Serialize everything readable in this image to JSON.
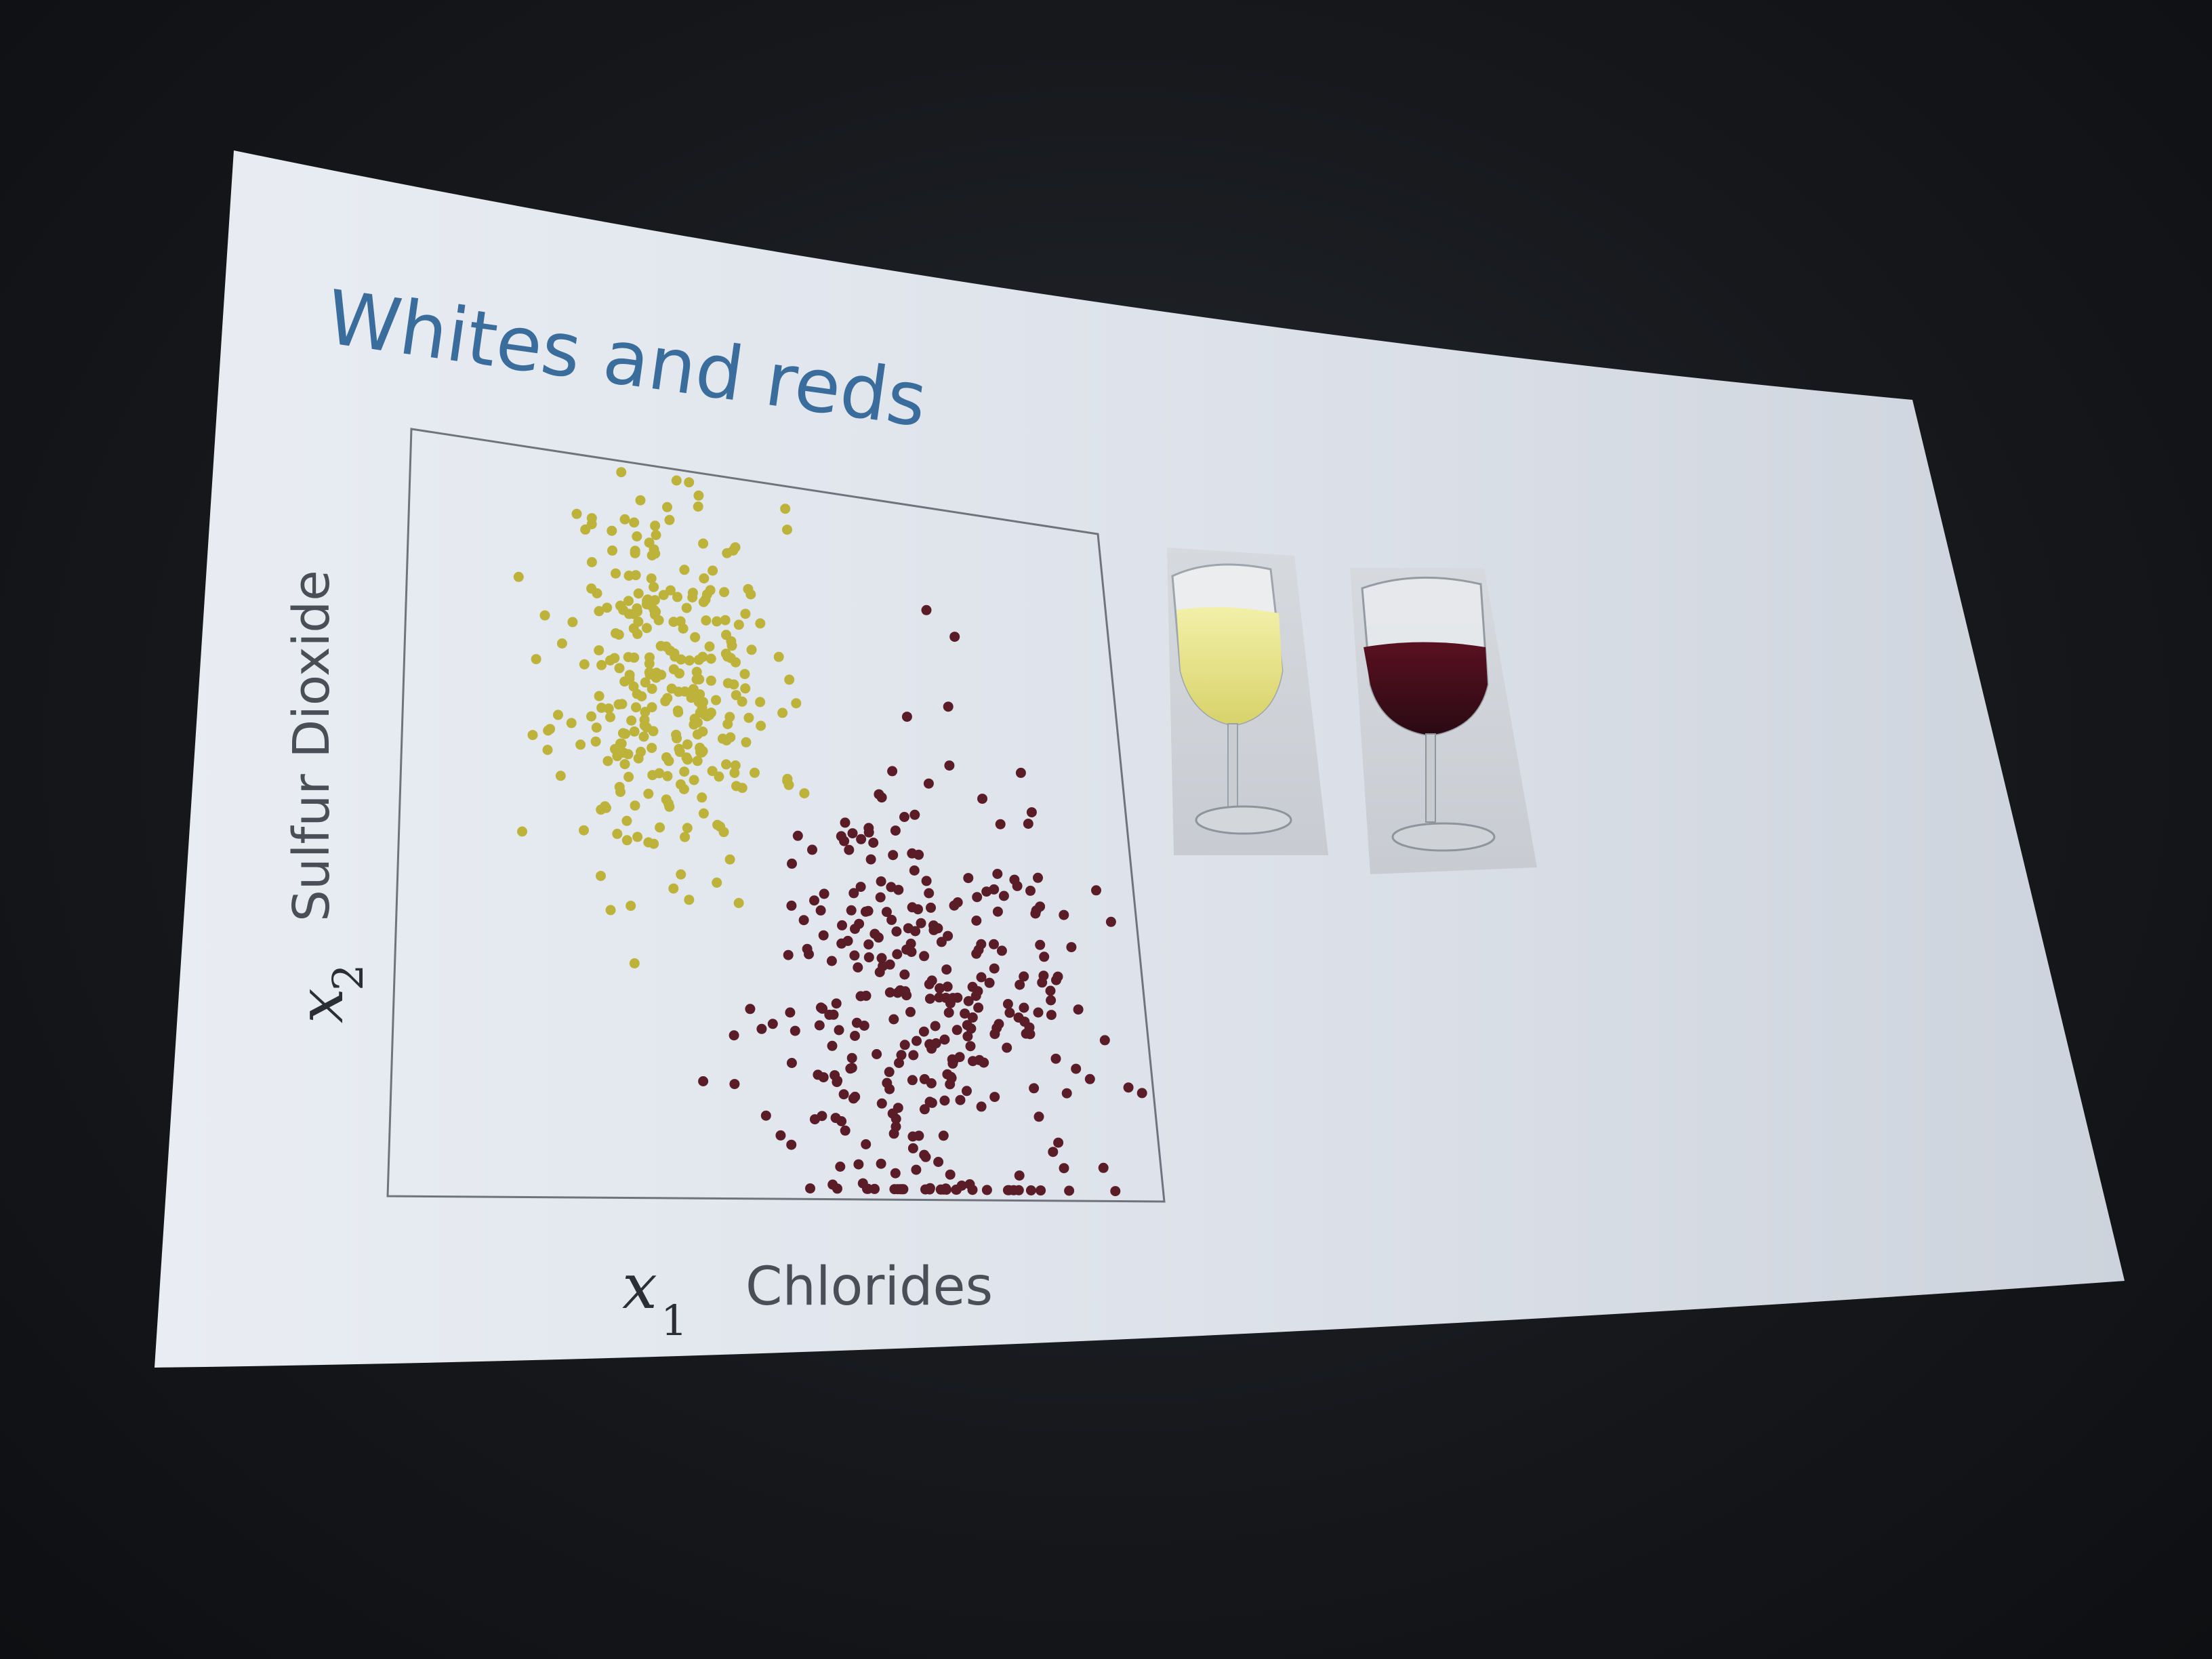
{
  "slide": {
    "title": "Whites and reds",
    "x_axis_symbol": "x",
    "x_axis_subscript": "1",
    "x_axis_label": "Chlorides",
    "y_axis_symbol": "x",
    "y_axis_subscript": "2",
    "y_axis_label": "Sulfur Dioxide",
    "colors": {
      "title": "#3a6d9c",
      "white_wine_points": "#bdb23a",
      "red_wine_points": "#5a1c26",
      "axis_text": "#4a4f57",
      "frame": "#6f747c"
    },
    "images": [
      "white-wine-glass",
      "red-wine-glass"
    ]
  },
  "chart_data": {
    "type": "scatter",
    "xlabel": "Chlorides",
    "ylabel": "Sulfur Dioxide",
    "xlim": [
      0,
      1
    ],
    "ylim": [
      0,
      1
    ],
    "grid": false,
    "series": [
      {
        "color": "#bdb23a",
        "cluster": {
          "cx": 0.37,
          "cy": 0.71,
          "sx": 0.075,
          "sy": 0.13,
          "n": 300,
          "seed": 11
        }
      },
      {
        "color": "#5a1c26",
        "cluster": {
          "cx": 0.69,
          "cy": 0.27,
          "sx": 0.105,
          "sy": 0.17,
          "n": 320,
          "seed": 29
        }
      }
    ]
  }
}
